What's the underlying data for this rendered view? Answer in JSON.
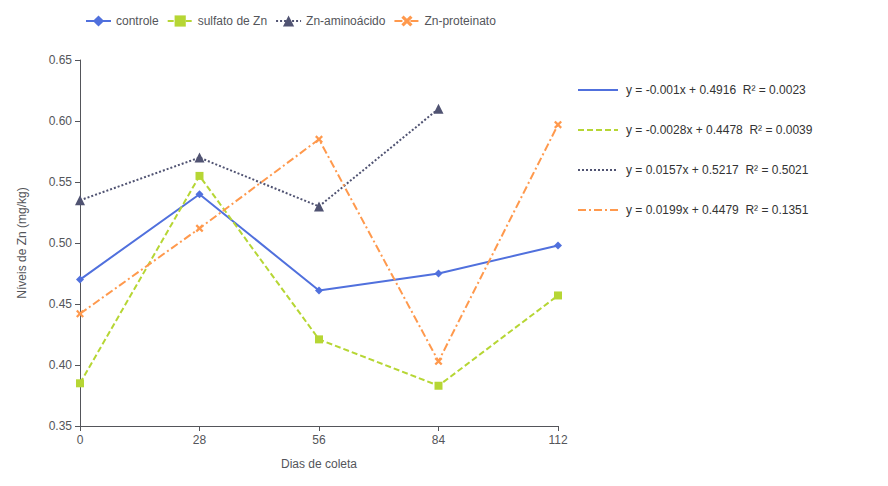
{
  "chart_data": {
    "type": "line",
    "xlabel": "Dias de coleta",
    "ylabel": "Níveis de Zn (mg/kg)",
    "xlim": [
      0,
      112
    ],
    "xticks": [
      0,
      28,
      56,
      84,
      112
    ],
    "ylim": [
      0.35,
      0.65
    ],
    "yticks": [
      0.35,
      {
        "value": 0.4,
        "label": "0.40"
      },
      0.45,
      {
        "value": 0.5,
        "label": "0.50"
      },
      0.55,
      {
        "value": 0.6,
        "label": "0.60"
      },
      0.65
    ],
    "grid": false,
    "legend": "top",
    "series": [
      {
        "name": "controle",
        "x": [
          0,
          28,
          56,
          84,
          112
        ],
        "values": [
          0.47,
          0.54,
          0.461,
          0.475,
          0.498
        ],
        "marker": "diamond",
        "line_style": "solid"
      },
      {
        "name": "sulfato de Zn",
        "x": [
          0,
          28,
          56,
          84,
          112
        ],
        "values": [
          0.385,
          0.555,
          0.421,
          0.383,
          0.457
        ],
        "marker": "square",
        "line_style": "dashed"
      },
      {
        "name": "Zn-aminoácido",
        "x": [
          0,
          28,
          56,
          84
        ],
        "values": [
          0.535,
          0.57,
          0.53,
          0.61
        ],
        "marker": "triangle",
        "line_style": "dotted"
      },
      {
        "name": "Zn-proteinato",
        "x": [
          0,
          28,
          56,
          84,
          112
        ],
        "values": [
          0.442,
          0.512,
          0.585,
          0.403,
          0.597
        ],
        "marker": "x",
        "line_style": "dashdot"
      }
    ],
    "annotations": [
      "y = -0.001x + 0.4916  R² = 0.0023",
      "y = -0.0028x + 0.4478  R² = 0.0039",
      "y = 0.0157x + 0.5217  R² = 0.5021",
      "y = 0.0199x + 0.4479  R² = 0.1351"
    ]
  }
}
